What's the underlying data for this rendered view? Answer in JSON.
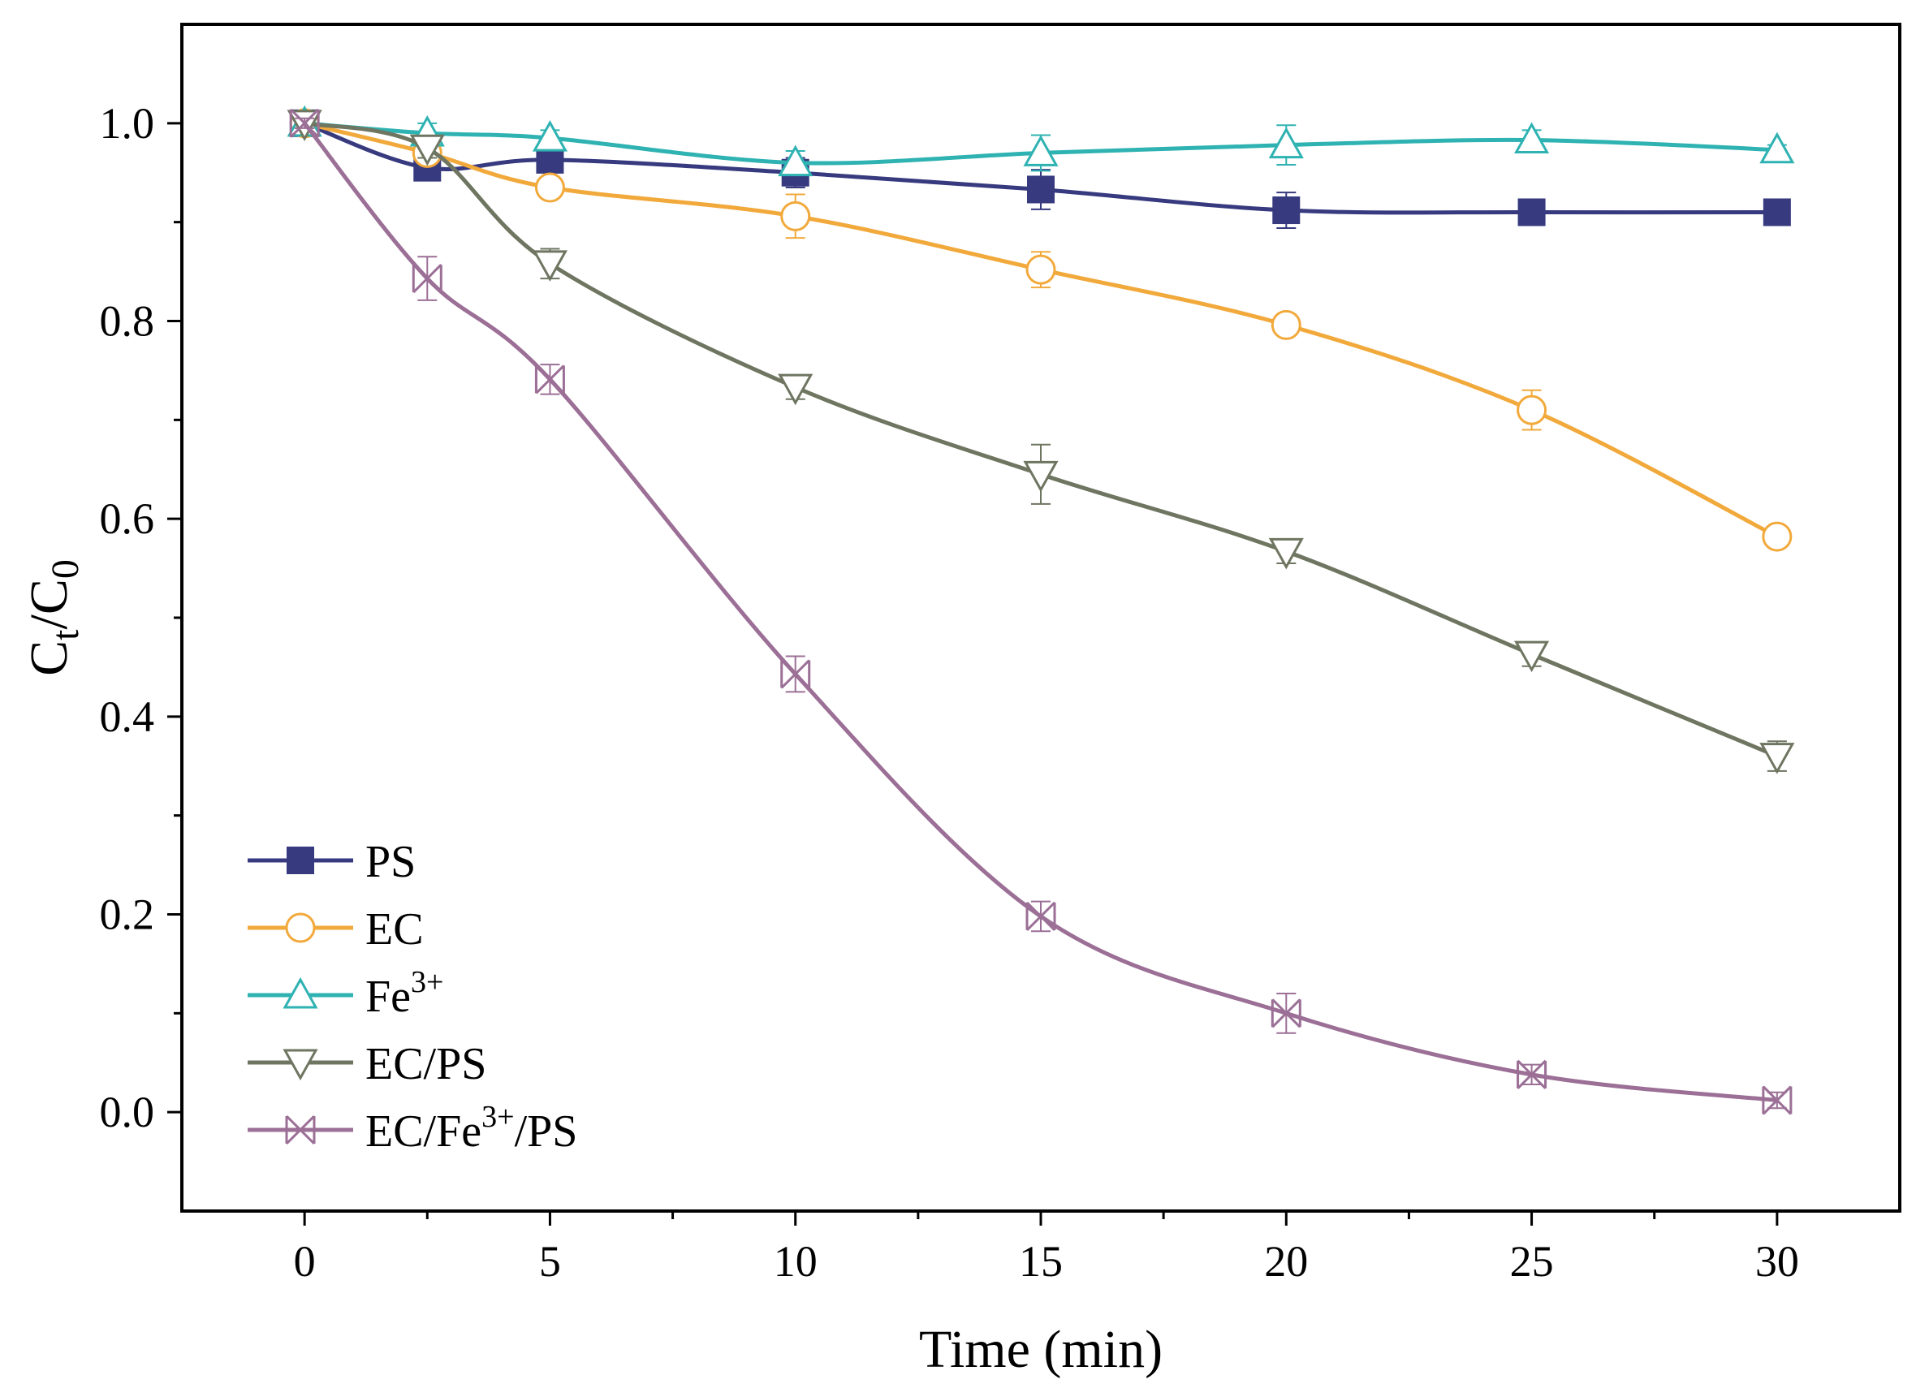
{
  "chart_data": {
    "type": "line",
    "title": "",
    "xlabel": "Time (min)",
    "ylabel": {
      "base": "C",
      "sub1": "t",
      "slash": "/",
      "base2": "C",
      "sub2": "0"
    },
    "xlim": [
      -2.5,
      32.5
    ],
    "ylim": [
      -0.1,
      1.1
    ],
    "x_ticks": [
      0,
      5,
      10,
      15,
      20,
      25,
      30
    ],
    "x_tick_labels": [
      "0",
      "5",
      "10",
      "15",
      "20",
      "25",
      "30"
    ],
    "y_ticks": [
      0.0,
      0.2,
      0.4,
      0.6,
      0.8,
      1.0
    ],
    "y_tick_labels": [
      "0.0",
      "0.2",
      "0.4",
      "0.6",
      "0.8",
      "1.0"
    ],
    "grid": false,
    "legend_position": "bottom-left",
    "series": [
      {
        "name": "PS",
        "label_main": "PS",
        "label_sup": "",
        "label_tail": "",
        "color": "#373a7e",
        "marker": "square-filled",
        "x": [
          0,
          2.5,
          5,
          10,
          15,
          20,
          25,
          30
        ],
        "y": [
          1.0,
          0.955,
          0.963,
          0.95,
          0.933,
          0.912,
          0.91,
          0.91
        ],
        "err": [
          0.005,
          0.01,
          0.008,
          0.015,
          0.02,
          0.018,
          0.012,
          0.005
        ]
      },
      {
        "name": "EC",
        "label_main": "EC",
        "label_sup": "",
        "label_tail": "",
        "color": "#f2a93b",
        "marker": "circle-open",
        "x": [
          0,
          2.5,
          5,
          10,
          15,
          20,
          25,
          30
        ],
        "y": [
          1.0,
          0.97,
          0.935,
          0.906,
          0.852,
          0.796,
          0.71,
          0.582
        ],
        "err": [
          0.005,
          0.01,
          0.008,
          0.022,
          0.018,
          0.008,
          0.02,
          0.01
        ]
      },
      {
        "name": "Fe3+",
        "label_main": "Fe",
        "label_sup": "3+",
        "label_tail": "",
        "color": "#2fb2b2",
        "marker": "triangle-up-open",
        "x": [
          0,
          2.5,
          5,
          10,
          15,
          20,
          25,
          30
        ],
        "y": [
          1.0,
          0.99,
          0.985,
          0.96,
          0.97,
          0.978,
          0.983,
          0.973
        ],
        "err": [
          0.005,
          0.01,
          0.008,
          0.012,
          0.018,
          0.02,
          0.01,
          0.005
        ]
      },
      {
        "name": "EC/PS",
        "label_main": "EC/PS",
        "label_sup": "",
        "label_tail": "",
        "color": "#6e7560",
        "marker": "triangle-down-open",
        "x": [
          0,
          2.5,
          5,
          10,
          15,
          20,
          25,
          30
        ],
        "y": [
          1.0,
          0.975,
          0.858,
          0.733,
          0.645,
          0.567,
          0.463,
          0.36
        ],
        "err": [
          0.005,
          0.01,
          0.015,
          0.012,
          0.03,
          0.012,
          0.012,
          0.015
        ]
      },
      {
        "name": "EC/Fe3+/PS",
        "label_main": "EC/Fe",
        "label_sup": "3+",
        "label_tail": "/PS",
        "color": "#9b6f96",
        "marker": "x-open",
        "x": [
          0,
          2.5,
          5,
          10,
          15,
          20,
          25,
          30
        ],
        "y": [
          1.0,
          0.843,
          0.741,
          0.443,
          0.198,
          0.1,
          0.038,
          0.012
        ],
        "err": [
          0.005,
          0.022,
          0.015,
          0.018,
          0.015,
          0.02,
          0.01,
          0.008
        ]
      }
    ]
  }
}
